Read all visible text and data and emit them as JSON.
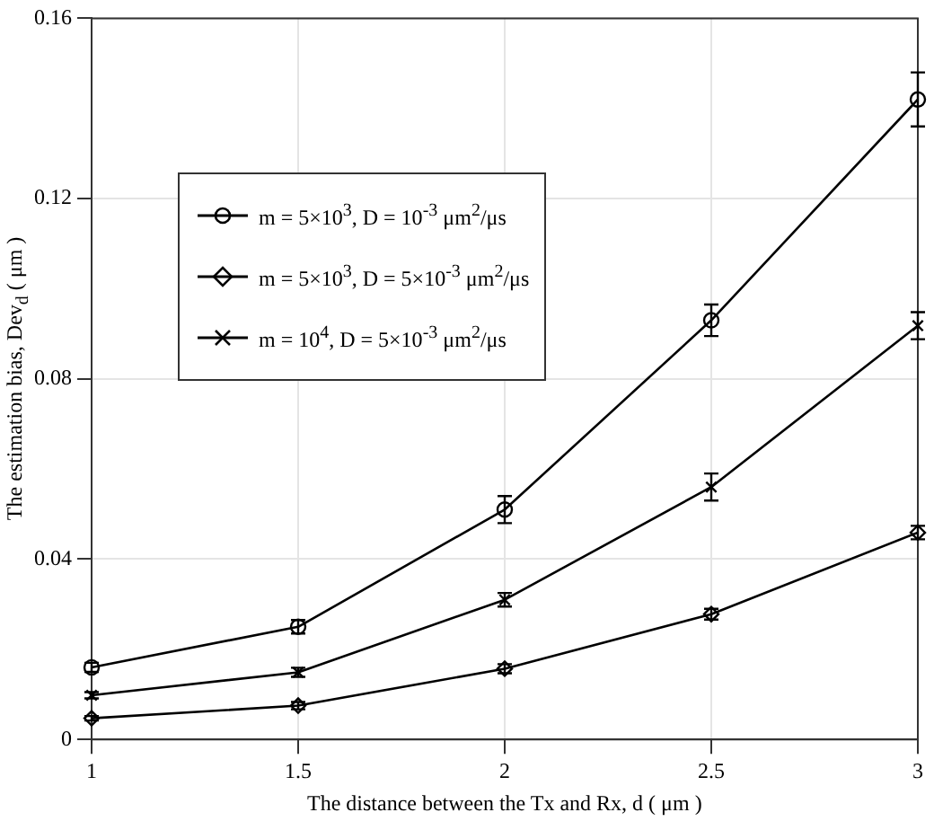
{
  "chart_data": {
    "type": "line",
    "xlabel": "The distance between the Tx and Rx, d ( μm )",
    "ylabel": "The estimation bias, Dev$_{d}$ ( μm )",
    "x": [
      1,
      1.5,
      2,
      2.5,
      3
    ],
    "xlim": [
      1,
      3
    ],
    "xticks": [
      1,
      1.5,
      2,
      2.5,
      3
    ],
    "ylim": [
      0,
      0.16
    ],
    "yticks": [
      0,
      0.04,
      0.08,
      0.12,
      0.16
    ],
    "grid": true,
    "legend": "top left",
    "line_style": "solid",
    "series": [
      {
        "name": "m = 5×10$^{3}$, D = 10$^{-3}$ μm$^{2}$/μs",
        "color": "#000000",
        "marker": "circle",
        "values": [
          0.016,
          0.025,
          0.051,
          0.093,
          0.142
        ],
        "errors": [
          0.001,
          0.0015,
          0.003,
          0.0035,
          0.006
        ]
      },
      {
        "name": "m = 5×10$^{3}$, D = 5×10$^{-3}$ μm$^{2}$/μs",
        "color": "#000000",
        "marker": "diamond",
        "values": [
          0.0047,
          0.0075,
          0.0157,
          0.0278,
          0.0459
        ],
        "errors": [
          0.0005,
          0.0008,
          0.001,
          0.0012,
          0.0015
        ]
      },
      {
        "name": "m = 10$^{4}$, D = 5×10$^{-3}$ μm$^{2}$/μs",
        "color": "#000000",
        "marker": "cross",
        "values": [
          0.0098,
          0.0149,
          0.031,
          0.056,
          0.0918
        ],
        "errors": [
          0.0007,
          0.001,
          0.0015,
          0.003,
          0.003
        ]
      }
    ]
  }
}
